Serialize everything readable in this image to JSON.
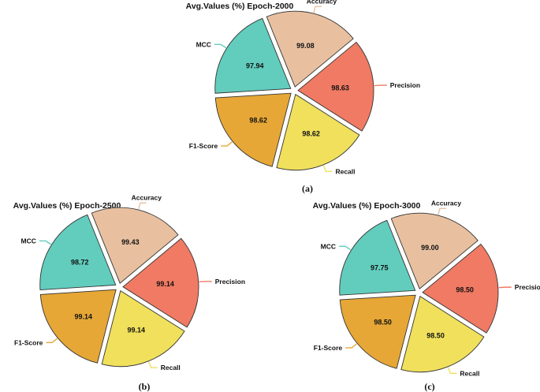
{
  "figure": {
    "panel_labels": [
      "(a)",
      "(b)",
      "(c)"
    ]
  },
  "chart_data": [
    {
      "type": "pie",
      "title": "Avg.Values (%) Epoch-2000",
      "categories": [
        "Accuracy",
        "Precision",
        "Recall",
        "F1-Score",
        "MCC"
      ],
      "values": [
        99.08,
        98.63,
        98.62,
        98.62,
        97.94
      ],
      "value_labels": [
        "99.08",
        "98.63",
        "98.62",
        "98.62",
        "97.94"
      ],
      "colors": [
        "#e8c0a0",
        "#f07a63",
        "#f0e05c",
        "#e6a736",
        "#62cdbd"
      ],
      "exploded": true
    },
    {
      "type": "pie",
      "title": "Avg.Values (%) Epoch-2500",
      "categories": [
        "Accuracy",
        "Precision",
        "Recall",
        "F1-Score",
        "MCC"
      ],
      "values": [
        99.43,
        99.14,
        99.14,
        99.14,
        98.72
      ],
      "value_labels": [
        "99.43",
        "99.14",
        "99.14",
        "99.14",
        "98.72"
      ],
      "colors": [
        "#e8c0a0",
        "#f07a63",
        "#f0e05c",
        "#e6a736",
        "#62cdbd"
      ],
      "exploded": true
    },
    {
      "type": "pie",
      "title": "Avg.Values (%) Epoch-3000",
      "categories": [
        "Accuracy",
        "Precision",
        "Recall",
        "F1-Score",
        "MCC"
      ],
      "values": [
        99.0,
        98.5,
        98.5,
        98.5,
        97.75
      ],
      "value_labels": [
        "99.00",
        "98.50",
        "98.50",
        "98.50",
        "97.75"
      ],
      "colors": [
        "#e8c0a0",
        "#f07a63",
        "#f0e05c",
        "#e6a736",
        "#62cdbd"
      ],
      "exploded": true
    }
  ]
}
